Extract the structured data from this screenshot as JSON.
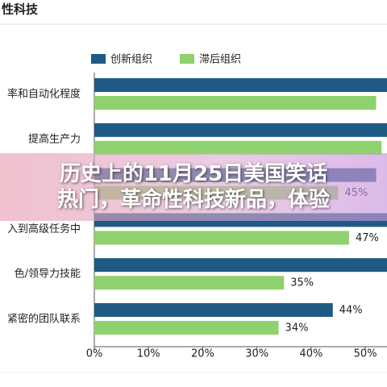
{
  "chart_data": {
    "type": "hbar",
    "title": "性科技",
    "categories": [
      "率和自动化程度",
      "提高生产力",
      null,
      "入到高级任务中",
      "色/领导力技能",
      "紧密的团队联系"
    ],
    "series": [
      {
        "name": "创新组织",
        "color": "#1f5a84",
        "values": [
          58,
          57,
          52,
          56,
          55,
          44
        ],
        "value_labels": [
          null,
          null,
          null,
          null,
          null,
          "44%"
        ]
      },
      {
        "name": "滞后组织",
        "color": "#8fd16e",
        "values": [
          52,
          53,
          45,
          47,
          35,
          34
        ],
        "value_labels": [
          null,
          null,
          "45%",
          "47%",
          "35%",
          "34%"
        ]
      }
    ],
    "xlim": [
      0,
      54
    ],
    "xticks": [
      {
        "value": 0,
        "label": "0%"
      },
      {
        "value": 10,
        "label": "10%"
      },
      {
        "value": 20,
        "label": "20%"
      },
      {
        "value": 30,
        "label": "30%"
      },
      {
        "value": 40,
        "label": "40%"
      },
      {
        "value": 50,
        "label": "50%"
      }
    ],
    "legend": "top"
  },
  "overlay": {
    "lines": [
      "历史上的11月25日美国笑话",
      "热门，革命性科技新品，体验"
    ]
  }
}
